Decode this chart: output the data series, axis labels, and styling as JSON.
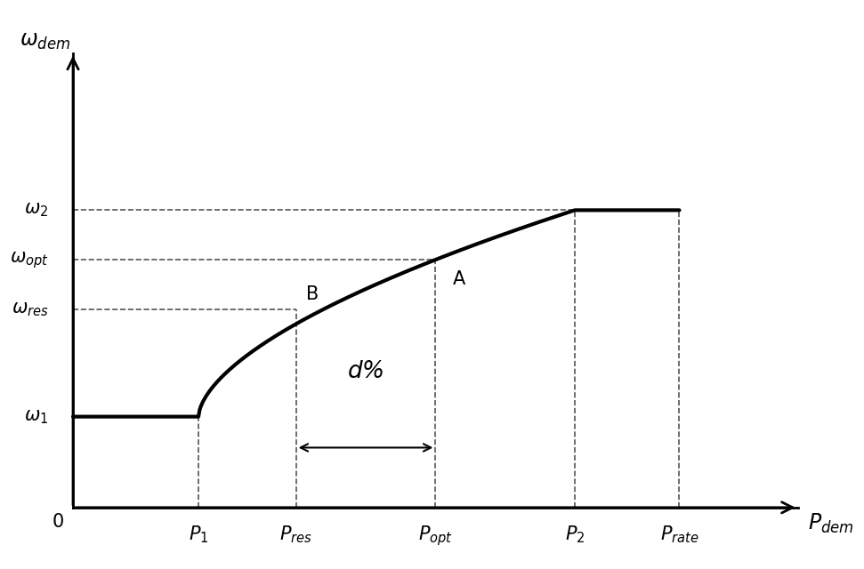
{
  "background_color": "#ffffff",
  "line_color": "#000000",
  "dashed_color": "#555555",
  "curve_linewidth": 3.0,
  "axis_linewidth": 2.0,
  "dashed_linewidth": 1.2,
  "P1": 0.18,
  "P_res": 0.32,
  "P_opt": 0.52,
  "P2": 0.72,
  "P_rate": 0.87,
  "P_max": 1.0,
  "omega_max": 1.0,
  "omega1": 0.22,
  "omega_res": 0.48,
  "omega_opt": 0.6,
  "omega2": 0.72,
  "labels": {
    "x_axis": "$P_{dem}$",
    "y_axis": "$\\omega_{dem}$",
    "P1": "$P_1$",
    "P_res": "$P_{res}$",
    "P_opt": "$P_{opt}$",
    "P2": "$P_2$",
    "P_rate": "$P_{rate}$",
    "omega1": "$\\omega_1$",
    "omega_res": "$\\omega_{res}$",
    "omega_opt": "$\\omega_{opt}$",
    "omega2": "$\\omega_2$",
    "origin": "$0$",
    "point_A": "A",
    "point_B": "B",
    "d_percent": "$d$%"
  },
  "fs_axis": 17,
  "fs_tick": 15,
  "fs_dpct": 19
}
